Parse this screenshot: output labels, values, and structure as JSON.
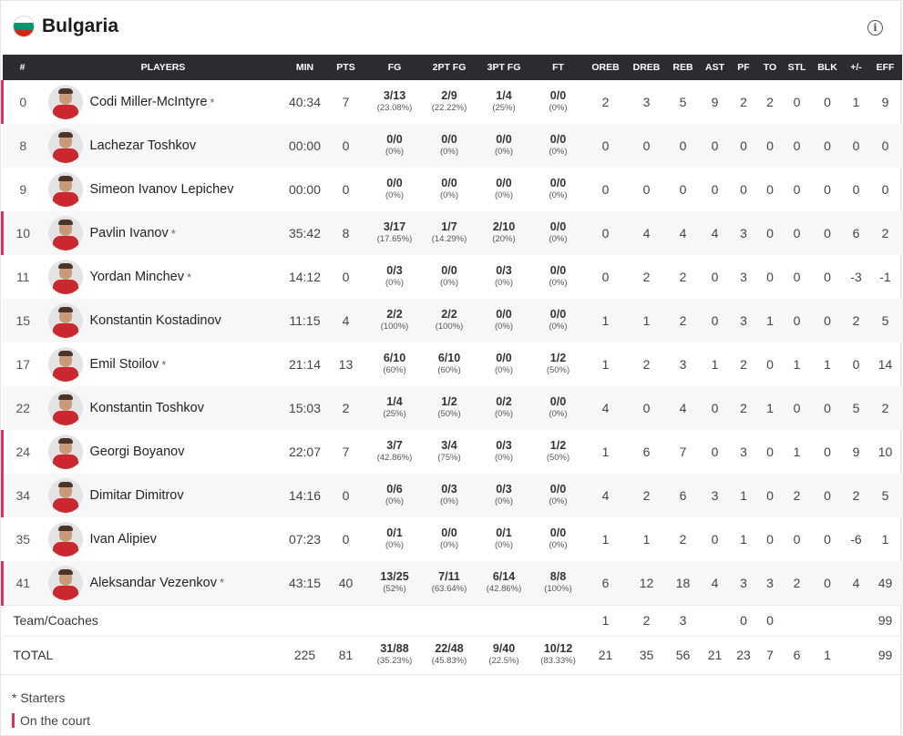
{
  "team": {
    "name": "Bulgaria",
    "flag_colors": [
      "#ffffff",
      "#00966e",
      "#d62612"
    ],
    "info_icon": "i"
  },
  "columns": [
    "#",
    "PLAYERS",
    "MIN",
    "PTS",
    "FG",
    "2PT FG",
    "3PT FG",
    "FT",
    "OREB",
    "DREB",
    "REB",
    "AST",
    "PF",
    "TO",
    "STL",
    "BLK",
    "+/-",
    "EFF"
  ],
  "accent_color": "#d6336c",
  "players": [
    {
      "num": "0",
      "name": "Codi Miller-McIntyre",
      "starter": "*",
      "oncourt": true,
      "min": "40:34",
      "pts": "7",
      "fg": "3/13",
      "fg_pct": "(23.08%)",
      "fg2": "2/9",
      "fg2_pct": "(22.22%)",
      "fg3": "1/4",
      "fg3_pct": "(25%)",
      "ft": "0/0",
      "ft_pct": "(0%)",
      "oreb": "2",
      "dreb": "3",
      "reb": "5",
      "ast": "9",
      "pf": "2",
      "to": "2",
      "stl": "0",
      "blk": "0",
      "pm": "1",
      "eff": "9"
    },
    {
      "num": "8",
      "name": "Lachezar Toshkov",
      "starter": "",
      "oncourt": false,
      "min": "00:00",
      "pts": "0",
      "fg": "0/0",
      "fg_pct": "(0%)",
      "fg2": "0/0",
      "fg2_pct": "(0%)",
      "fg3": "0/0",
      "fg3_pct": "(0%)",
      "ft": "0/0",
      "ft_pct": "(0%)",
      "oreb": "0",
      "dreb": "0",
      "reb": "0",
      "ast": "0",
      "pf": "0",
      "to": "0",
      "stl": "0",
      "blk": "0",
      "pm": "0",
      "eff": "0"
    },
    {
      "num": "9",
      "name": "Simeon Ivanov Lepichev",
      "starter": "",
      "oncourt": false,
      "min": "00:00",
      "pts": "0",
      "fg": "0/0",
      "fg_pct": "(0%)",
      "fg2": "0/0",
      "fg2_pct": "(0%)",
      "fg3": "0/0",
      "fg3_pct": "(0%)",
      "ft": "0/0",
      "ft_pct": "(0%)",
      "oreb": "0",
      "dreb": "0",
      "reb": "0",
      "ast": "0",
      "pf": "0",
      "to": "0",
      "stl": "0",
      "blk": "0",
      "pm": "0",
      "eff": "0"
    },
    {
      "num": "10",
      "name": "Pavlin Ivanov",
      "starter": "*",
      "oncourt": true,
      "min": "35:42",
      "pts": "8",
      "fg": "3/17",
      "fg_pct": "(17.65%)",
      "fg2": "1/7",
      "fg2_pct": "(14.29%)",
      "fg3": "2/10",
      "fg3_pct": "(20%)",
      "ft": "0/0",
      "ft_pct": "(0%)",
      "oreb": "0",
      "dreb": "4",
      "reb": "4",
      "ast": "4",
      "pf": "3",
      "to": "0",
      "stl": "0",
      "blk": "0",
      "pm": "6",
      "eff": "2"
    },
    {
      "num": "11",
      "name": "Yordan Minchev",
      "starter": "*",
      "oncourt": false,
      "min": "14:12",
      "pts": "0",
      "fg": "0/3",
      "fg_pct": "(0%)",
      "fg2": "0/0",
      "fg2_pct": "(0%)",
      "fg3": "0/3",
      "fg3_pct": "(0%)",
      "ft": "0/0",
      "ft_pct": "(0%)",
      "oreb": "0",
      "dreb": "2",
      "reb": "2",
      "ast": "0",
      "pf": "3",
      "to": "0",
      "stl": "0",
      "blk": "0",
      "pm": "-3",
      "eff": "-1"
    },
    {
      "num": "15",
      "name": "Konstantin Kostadinov",
      "starter": "",
      "oncourt": false,
      "min": "11:15",
      "pts": "4",
      "fg": "2/2",
      "fg_pct": "(100%)",
      "fg2": "2/2",
      "fg2_pct": "(100%)",
      "fg3": "0/0",
      "fg3_pct": "(0%)",
      "ft": "0/0",
      "ft_pct": "(0%)",
      "oreb": "1",
      "dreb": "1",
      "reb": "2",
      "ast": "0",
      "pf": "3",
      "to": "1",
      "stl": "0",
      "blk": "0",
      "pm": "2",
      "eff": "5"
    },
    {
      "num": "17",
      "name": "Emil Stoilov",
      "starter": "*",
      "oncourt": false,
      "min": "21:14",
      "pts": "13",
      "fg": "6/10",
      "fg_pct": "(60%)",
      "fg2": "6/10",
      "fg2_pct": "(60%)",
      "fg3": "0/0",
      "fg3_pct": "(0%)",
      "ft": "1/2",
      "ft_pct": "(50%)",
      "oreb": "1",
      "dreb": "2",
      "reb": "3",
      "ast": "1",
      "pf": "2",
      "to": "0",
      "stl": "1",
      "blk": "1",
      "pm": "0",
      "eff": "14"
    },
    {
      "num": "22",
      "name": "Konstantin Toshkov",
      "starter": "",
      "oncourt": false,
      "min": "15:03",
      "pts": "2",
      "fg": "1/4",
      "fg_pct": "(25%)",
      "fg2": "1/2",
      "fg2_pct": "(50%)",
      "fg3": "0/2",
      "fg3_pct": "(0%)",
      "ft": "0/0",
      "ft_pct": "(0%)",
      "oreb": "4",
      "dreb": "0",
      "reb": "4",
      "ast": "0",
      "pf": "2",
      "to": "1",
      "stl": "0",
      "blk": "0",
      "pm": "5",
      "eff": "2"
    },
    {
      "num": "24",
      "name": "Georgi Boyanov",
      "starter": "",
      "oncourt": true,
      "min": "22:07",
      "pts": "7",
      "fg": "3/7",
      "fg_pct": "(42.86%)",
      "fg2": "3/4",
      "fg2_pct": "(75%)",
      "fg3": "0/3",
      "fg3_pct": "(0%)",
      "ft": "1/2",
      "ft_pct": "(50%)",
      "oreb": "1",
      "dreb": "6",
      "reb": "7",
      "ast": "0",
      "pf": "3",
      "to": "0",
      "stl": "1",
      "blk": "0",
      "pm": "9",
      "eff": "10"
    },
    {
      "num": "34",
      "name": "Dimitar Dimitrov",
      "starter": "",
      "oncourt": true,
      "min": "14:16",
      "pts": "0",
      "fg": "0/6",
      "fg_pct": "(0%)",
      "fg2": "0/3",
      "fg2_pct": "(0%)",
      "fg3": "0/3",
      "fg3_pct": "(0%)",
      "ft": "0/0",
      "ft_pct": "(0%)",
      "oreb": "4",
      "dreb": "2",
      "reb": "6",
      "ast": "3",
      "pf": "1",
      "to": "0",
      "stl": "2",
      "blk": "0",
      "pm": "2",
      "eff": "5"
    },
    {
      "num": "35",
      "name": "Ivan Alipiev",
      "starter": "",
      "oncourt": false,
      "min": "07:23",
      "pts": "0",
      "fg": "0/1",
      "fg_pct": "(0%)",
      "fg2": "0/0",
      "fg2_pct": "(0%)",
      "fg3": "0/1",
      "fg3_pct": "(0%)",
      "ft": "0/0",
      "ft_pct": "(0%)",
      "oreb": "1",
      "dreb": "1",
      "reb": "2",
      "ast": "0",
      "pf": "1",
      "to": "0",
      "stl": "0",
      "blk": "0",
      "pm": "-6",
      "eff": "1"
    },
    {
      "num": "41",
      "name": "Aleksandar Vezenkov",
      "starter": "*",
      "oncourt": true,
      "min": "43:15",
      "pts": "40",
      "fg": "13/25",
      "fg_pct": "(52%)",
      "fg2": "7/11",
      "fg2_pct": "(63.64%)",
      "fg3": "6/14",
      "fg3_pct": "(42.86%)",
      "ft": "8/8",
      "ft_pct": "(100%)",
      "oreb": "6",
      "dreb": "12",
      "reb": "18",
      "ast": "4",
      "pf": "3",
      "to": "3",
      "stl": "2",
      "blk": "0",
      "pm": "4",
      "eff": "49"
    }
  ],
  "team_row": {
    "label": "Team/Coaches",
    "oreb": "1",
    "dreb": "2",
    "reb": "3",
    "pf": "0",
    "to": "0",
    "eff": "99"
  },
  "total_row": {
    "label": "TOTAL",
    "min": "225",
    "pts": "81",
    "fg": "31/88",
    "fg_pct": "(35.23%)",
    "fg2": "22/48",
    "fg2_pct": "(45.83%)",
    "fg3": "9/40",
    "fg3_pct": "(22.5%)",
    "ft": "10/12",
    "ft_pct": "(83.33%)",
    "oreb": "21",
    "dreb": "35",
    "reb": "56",
    "ast": "21",
    "pf": "23",
    "to": "7",
    "stl": "6",
    "blk": "1",
    "eff": "99"
  },
  "legend": {
    "starters": "* Starters",
    "oncourt": "On the court"
  }
}
